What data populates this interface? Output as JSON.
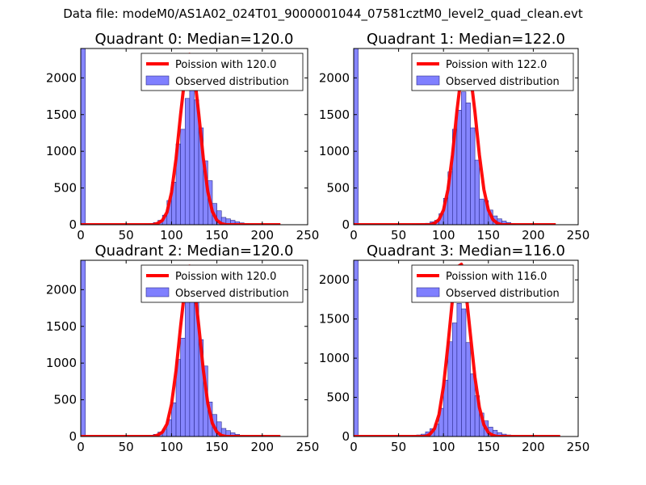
{
  "figure": {
    "suptitle": "Data file: modeM0/AS1A02_024T01_9000001044_07581cztM0_level2_quad_clean.evt"
  },
  "colors": {
    "bars": "#7f7fff",
    "bar_edge": "#2a2a8a",
    "fit_line": "#ff0000",
    "axes": "#000000"
  },
  "chart_data": [
    {
      "type": "bar",
      "title": "Quadrant 0: Median=120.0",
      "xlim": [
        0,
        250
      ],
      "ylim": [
        0,
        2400
      ],
      "xticks": [
        "0",
        "50",
        "100",
        "150",
        "200",
        "250"
      ],
      "yticks": [
        "0",
        "500",
        "1000",
        "1500",
        "2000"
      ],
      "bin_width": 5,
      "bins": [
        [
          0,
          2400
        ],
        [
          70,
          5
        ],
        [
          75,
          10
        ],
        [
          80,
          30
        ],
        [
          85,
          60
        ],
        [
          90,
          130
        ],
        [
          95,
          330
        ],
        [
          100,
          580
        ],
        [
          105,
          1100
        ],
        [
          110,
          1300
        ],
        [
          115,
          1720
        ],
        [
          120,
          1900
        ],
        [
          125,
          1700
        ],
        [
          130,
          1320
        ],
        [
          135,
          870
        ],
        [
          140,
          600
        ],
        [
          145,
          290
        ],
        [
          150,
          190
        ],
        [
          155,
          100
        ],
        [
          160,
          80
        ],
        [
          165,
          60
        ],
        [
          170,
          40
        ],
        [
          175,
          25
        ],
        [
          180,
          10
        ],
        [
          185,
          5
        ]
      ],
      "fit": {
        "x": [
          0,
          80,
          85,
          90,
          95,
          100,
          105,
          110,
          115,
          120,
          125,
          130,
          135,
          140,
          145,
          150,
          155,
          160,
          220
        ],
        "y": [
          0,
          0,
          20,
          60,
          170,
          440,
          900,
          1500,
          2050,
          2320,
          2060,
          1510,
          910,
          450,
          180,
          60,
          15,
          0,
          0
        ]
      },
      "legend": [
        "Poission with 120.0",
        "Observed distribution"
      ]
    },
    {
      "type": "bar",
      "title": "Quadrant 1: Median=122.0",
      "xlim": [
        0,
        250
      ],
      "ylim": [
        0,
        2400
      ],
      "xticks": [
        "0",
        "50",
        "100",
        "150",
        "200",
        "250"
      ],
      "yticks": [
        "0",
        "500",
        "1000",
        "1500",
        "2000"
      ],
      "bin_width": 5,
      "bins": [
        [
          0,
          2400
        ],
        [
          65,
          5
        ],
        [
          70,
          10
        ],
        [
          75,
          15
        ],
        [
          80,
          20
        ],
        [
          85,
          40
        ],
        [
          90,
          60
        ],
        [
          95,
          150
        ],
        [
          100,
          360
        ],
        [
          105,
          720
        ],
        [
          110,
          1300
        ],
        [
          115,
          1560
        ],
        [
          120,
          1810
        ],
        [
          125,
          1660
        ],
        [
          130,
          1320
        ],
        [
          135,
          880
        ],
        [
          140,
          350
        ],
        [
          145,
          330
        ],
        [
          150,
          200
        ],
        [
          155,
          120
        ],
        [
          160,
          80
        ],
        [
          165,
          50
        ],
        [
          170,
          30
        ],
        [
          175,
          10
        ]
      ],
      "fit": {
        "x": [
          0,
          85,
          90,
          95,
          100,
          105,
          110,
          115,
          120,
          125,
          130,
          135,
          140,
          145,
          150,
          155,
          160,
          165,
          225
        ],
        "y": [
          0,
          0,
          20,
          70,
          200,
          480,
          950,
          1550,
          2060,
          2300,
          2050,
          1540,
          950,
          480,
          200,
          70,
          20,
          0,
          0
        ]
      },
      "legend": [
        "Poission with 122.0",
        "Observed distribution"
      ]
    },
    {
      "type": "bar",
      "title": "Quadrant 2: Median=120.0",
      "xlim": [
        0,
        250
      ],
      "ylim": [
        0,
        2400
      ],
      "xticks": [
        "0",
        "50",
        "100",
        "150",
        "200",
        "250"
      ],
      "yticks": [
        "0",
        "500",
        "1000",
        "1500",
        "2000"
      ],
      "bin_width": 5,
      "bins": [
        [
          0,
          2400
        ],
        [
          65,
          5
        ],
        [
          70,
          10
        ],
        [
          75,
          15
        ],
        [
          80,
          30
        ],
        [
          85,
          60
        ],
        [
          90,
          100
        ],
        [
          95,
          230
        ],
        [
          100,
          460
        ],
        [
          105,
          1050
        ],
        [
          110,
          1340
        ],
        [
          115,
          1860
        ],
        [
          120,
          2100
        ],
        [
          125,
          1900
        ],
        [
          130,
          1320
        ],
        [
          135,
          960
        ],
        [
          140,
          470
        ],
        [
          145,
          300
        ],
        [
          150,
          200
        ],
        [
          155,
          110
        ],
        [
          160,
          80
        ],
        [
          165,
          50
        ],
        [
          170,
          30
        ],
        [
          175,
          15
        ],
        [
          180,
          5
        ]
      ],
      "fit": {
        "x": [
          0,
          80,
          85,
          90,
          95,
          100,
          105,
          110,
          115,
          120,
          125,
          130,
          135,
          140,
          145,
          150,
          155,
          160,
          220
        ],
        "y": [
          0,
          0,
          20,
          60,
          170,
          440,
          900,
          1500,
          2050,
          2320,
          2060,
          1510,
          910,
          450,
          180,
          60,
          15,
          0,
          0
        ]
      },
      "legend": [
        "Poission with 120.0",
        "Observed distribution"
      ]
    },
    {
      "type": "bar",
      "title": "Quadrant 3: Median=116.0",
      "xlim": [
        0,
        250
      ],
      "ylim": [
        0,
        2250
      ],
      "xticks": [
        "0",
        "50",
        "100",
        "150",
        "200",
        "250"
      ],
      "yticks": [
        "0",
        "500",
        "1000",
        "1500",
        "2000"
      ],
      "bin_width": 5,
      "bins": [
        [
          0,
          2250
        ],
        [
          65,
          10
        ],
        [
          70,
          20
        ],
        [
          75,
          30
        ],
        [
          80,
          60
        ],
        [
          85,
          100
        ],
        [
          90,
          160
        ],
        [
          95,
          360
        ],
        [
          100,
          720
        ],
        [
          105,
          1210
        ],
        [
          110,
          1450
        ],
        [
          115,
          1700
        ],
        [
          120,
          1630
        ],
        [
          125,
          1200
        ],
        [
          130,
          800
        ],
        [
          135,
          520
        ],
        [
          140,
          300
        ],
        [
          145,
          200
        ],
        [
          150,
          120
        ],
        [
          155,
          80
        ],
        [
          160,
          50
        ],
        [
          165,
          30
        ],
        [
          170,
          20
        ],
        [
          175,
          10
        ]
      ],
      "fit": {
        "x": [
          0,
          80,
          85,
          90,
          95,
          100,
          105,
          110,
          115,
          120,
          125,
          130,
          135,
          140,
          145,
          150,
          155,
          160,
          230
        ],
        "y": [
          0,
          0,
          30,
          100,
          280,
          640,
          1170,
          1750,
          2160,
          2200,
          1850,
          1300,
          760,
          370,
          150,
          50,
          15,
          0,
          0
        ]
      },
      "legend": [
        "Poission with 116.0",
        "Observed distribution"
      ]
    }
  ]
}
